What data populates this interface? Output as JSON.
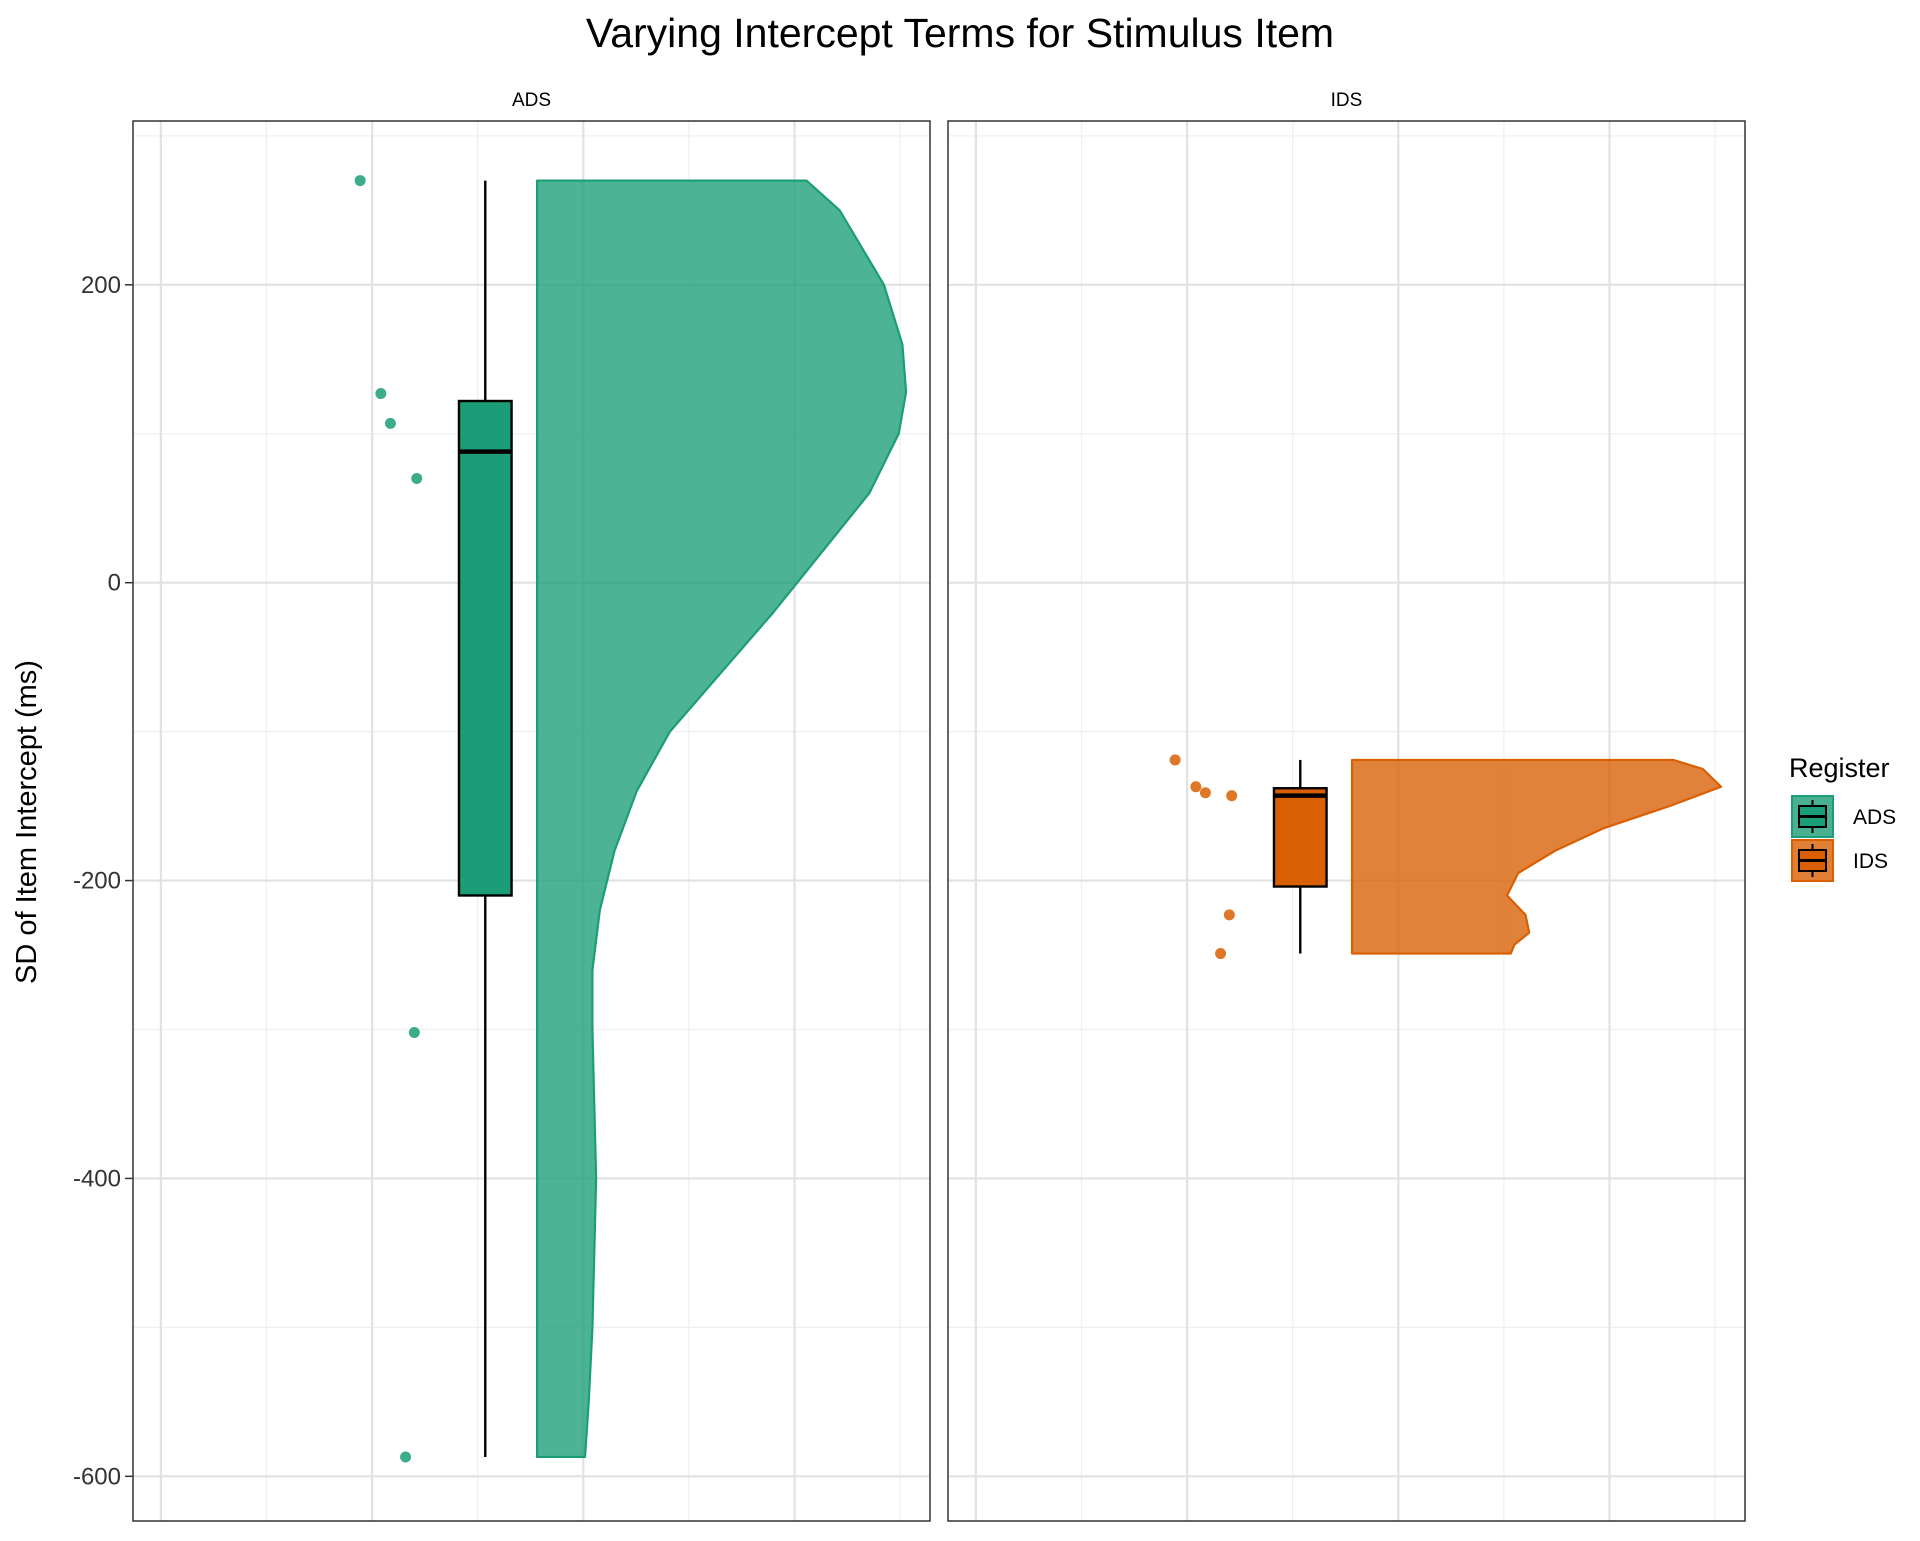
{
  "chart_data": {
    "type": "raincloud",
    "title": "Varying Intercept Terms for Stimulus Item",
    "ylabel": "SD of Item Intercept (ms)",
    "xlabel": "",
    "ylim": [
      -630,
      310
    ],
    "yticks": [
      200,
      0,
      -200,
      -400,
      -600
    ],
    "yticklabels": [
      "200",
      "0",
      "-200",
      "-400",
      "-600"
    ],
    "grid": true,
    "legend": {
      "title": "Register",
      "position": "right",
      "entries": [
        {
          "label": "ADS",
          "color": "#1b9e77"
        },
        {
          "label": "IDS",
          "color": "#d95f02"
        }
      ]
    },
    "panels": [
      {
        "strip": "ADS",
        "color": "#1b9e77",
        "points": [
          270,
          127,
          107,
          70,
          -302,
          -587
        ],
        "box": {
          "lower_whisker": -587,
          "q1": -210,
          "median": 88,
          "q3": 122,
          "upper_whisker": 270
        },
        "density": [
          [
            270,
            0.73
          ],
          [
            250,
            0.82
          ],
          [
            200,
            0.94
          ],
          [
            160,
            0.99
          ],
          [
            128,
            1.0
          ],
          [
            100,
            0.98
          ],
          [
            60,
            0.9
          ],
          [
            20,
            0.77
          ],
          [
            -20,
            0.64
          ],
          [
            -60,
            0.5
          ],
          [
            -100,
            0.36
          ],
          [
            -140,
            0.27
          ],
          [
            -180,
            0.21
          ],
          [
            -220,
            0.17
          ],
          [
            -260,
            0.15
          ],
          [
            -300,
            0.15
          ],
          [
            -350,
            0.155
          ],
          [
            -400,
            0.16
          ],
          [
            -450,
            0.155
          ],
          [
            -500,
            0.15
          ],
          [
            -550,
            0.14
          ],
          [
            -587,
            0.13
          ]
        ]
      },
      {
        "strip": "IDS",
        "color": "#d95f02",
        "points": [
          -119,
          -137,
          -141,
          -143,
          -223,
          -249
        ],
        "box": {
          "lower_whisker": -249,
          "q1": -204,
          "median": -143,
          "q3": -138,
          "upper_whisker": -119
        },
        "density": [
          [
            -119,
            0.87
          ],
          [
            -125,
            0.95
          ],
          [
            -137,
            1.0
          ],
          [
            -150,
            0.86
          ],
          [
            -165,
            0.68
          ],
          [
            -180,
            0.55
          ],
          [
            -195,
            0.45
          ],
          [
            -210,
            0.42
          ],
          [
            -223,
            0.47
          ],
          [
            -235,
            0.48
          ],
          [
            -243,
            0.44
          ],
          [
            -249,
            0.43
          ]
        ]
      }
    ]
  }
}
